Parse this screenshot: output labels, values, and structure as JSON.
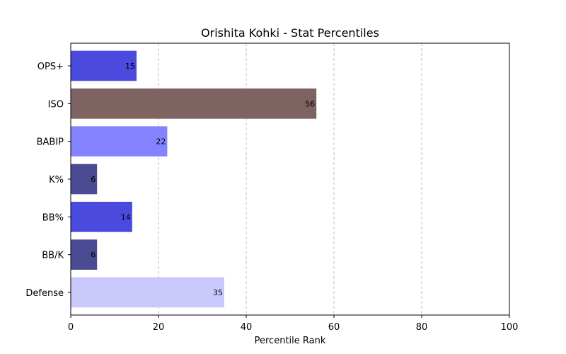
{
  "chart_data": {
    "type": "bar",
    "orientation": "horizontal",
    "title": "Orishita Kohki - Stat Percentiles",
    "xlabel": "Percentile Rank",
    "ylabel": "",
    "xlim": [
      0,
      100
    ],
    "xticks": [
      0,
      20,
      40,
      60,
      80,
      100
    ],
    "grid": "vertical-dashed",
    "categories": [
      "OPS+",
      "ISO",
      "BABIP",
      "K%",
      "BB%",
      "BB/K",
      "Defense"
    ],
    "values": [
      15,
      56,
      22,
      6,
      14,
      6,
      35
    ],
    "colors": [
      "#4a4adf",
      "#7f6262",
      "#8383ff",
      "#4b4b93",
      "#4a4adf",
      "#4b4b93",
      "#c8c8fa"
    ]
  }
}
